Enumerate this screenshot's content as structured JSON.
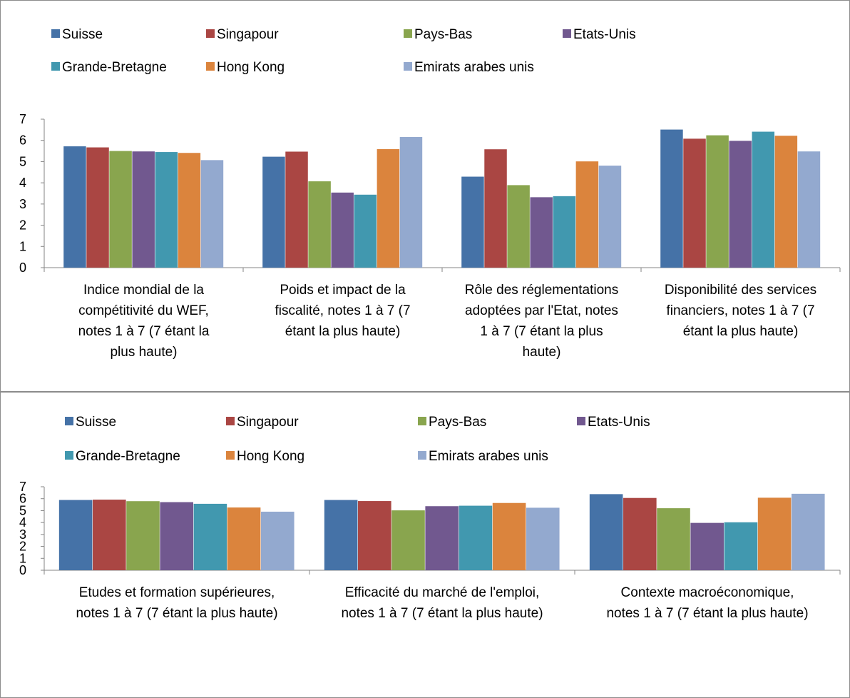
{
  "colors": {
    "series": [
      "#4572a7",
      "#aa4643",
      "#89a54e",
      "#71588f",
      "#4198af",
      "#db843d",
      "#93a9cf"
    ]
  },
  "chart_data": [
    {
      "type": "bar",
      "title": "",
      "xlabel": "",
      "ylabel": "",
      "ylim": [
        0,
        7
      ],
      "y_ticks": [
        "0",
        "1",
        "2",
        "3",
        "4",
        "5",
        "6",
        "7"
      ],
      "grid": false,
      "legend_position": "top",
      "categories": [
        "Indice mondial de la compétitivité du WEF, notes 1 à 7 (7 étant la plus haute)",
        "Poids et impact de la fiscalité, notes 1 à 7 (7 étant la plus haute)",
        "Rôle des réglementations adoptées par l'Etat, notes 1 à 7 (7 étant la plus haute)",
        "Disponibilité des services financiers, notes 1 à 7 (7 étant la plus haute)"
      ],
      "category_lines": [
        [
          "Indice mondial de la",
          "compétitivité du WEF,",
          "notes 1 à 7 (7 étant la",
          "plus haute)"
        ],
        [
          "Poids et impact de la",
          "fiscalité, notes 1 à 7 (7",
          "étant la plus haute)"
        ],
        [
          "Rôle des réglementations",
          "adoptées par l'Etat, notes",
          "1 à 7 (7 étant la plus",
          "haute)"
        ],
        [
          "Disponibilité des services",
          "financiers, notes 1 à 7 (7",
          "étant la plus haute)"
        ]
      ],
      "series": [
        {
          "name": "Suisse",
          "values": [
            5.72,
            5.23,
            4.29,
            6.51
          ]
        },
        {
          "name": "Singapour",
          "values": [
            5.67,
            5.47,
            5.58,
            6.08
          ]
        },
        {
          "name": "Pays-Bas",
          "values": [
            5.5,
            4.07,
            3.89,
            6.24
          ]
        },
        {
          "name": "Etats-Unis",
          "values": [
            5.48,
            3.54,
            3.32,
            5.98
          ]
        },
        {
          "name": "Grande-Bretagne",
          "values": [
            5.45,
            3.44,
            3.37,
            6.41
          ]
        },
        {
          "name": "Hong Kong",
          "values": [
            5.41,
            5.59,
            5.01,
            6.22
          ]
        },
        {
          "name": "Emirats arabes unis",
          "values": [
            5.07,
            6.16,
            4.81,
            5.48
          ]
        }
      ]
    },
    {
      "type": "bar",
      "title": "",
      "xlabel": "",
      "ylabel": "",
      "ylim": [
        0,
        7
      ],
      "y_ticks": [
        "0",
        "1",
        "2",
        "3",
        "4",
        "5",
        "6",
        "7"
      ],
      "grid": false,
      "legend_position": "top",
      "categories": [
        "Etudes et formation supérieures, notes 1 à 7 (7 étant la plus haute)",
        "Efficacité du marché de l'emploi, notes 1 à 7 (7 étant la plus haute)",
        "Contexte macroéconomique, notes 1 à 7 (7 étant la plus haute)"
      ],
      "category_lines": [
        [
          "Etudes et formation supérieures,",
          "notes 1 à 7 (7 étant la plus haute)"
        ],
        [
          "Efficacité du marché de l'emploi,",
          "notes 1 à 7 (7 étant la plus haute)"
        ],
        [
          "Contexte macroéconomique,",
          "notes 1 à 7 (7 étant la plus haute)"
        ]
      ],
      "series": [
        {
          "name": "Suisse",
          "values": [
            5.89,
            5.89,
            6.38
          ]
        },
        {
          "name": "Singapour",
          "values": [
            5.92,
            5.8,
            6.06
          ]
        },
        {
          "name": "Pays-Bas",
          "values": [
            5.79,
            5.02,
            5.2
          ]
        },
        {
          "name": "Etats-Unis",
          "values": [
            5.71,
            5.37,
            3.97
          ]
        },
        {
          "name": "Grande-Bretagne",
          "values": [
            5.57,
            5.41,
            4.02
          ]
        },
        {
          "name": "Hong Kong",
          "values": [
            5.26,
            5.64,
            6.08
          ]
        },
        {
          "name": "Emirats arabes unis",
          "values": [
            4.91,
            5.24,
            6.41
          ]
        }
      ]
    }
  ]
}
